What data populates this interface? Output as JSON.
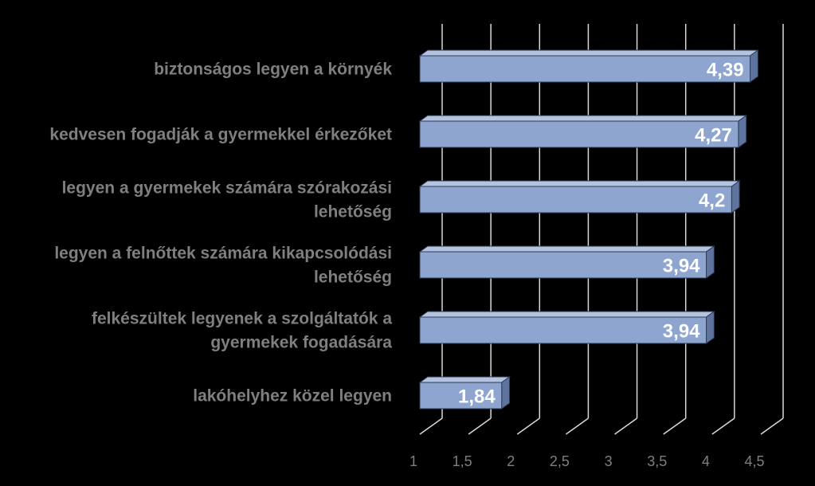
{
  "chart_data": {
    "type": "bar",
    "orientation": "horizontal",
    "categories": [
      "biztonságos legyen a környék",
      "kedvesen fogadják a gyermekkel érkezőket",
      "legyen a gyermekek számára szórakozási lehetőség",
      "legyen a felnőttek számára kikapcsolódási lehetőség",
      "felkészültek legyenek a szolgáltatók a gyermekek fogadására",
      "lakóhelyhez közel legyen"
    ],
    "category_lines": [
      [
        "biztonságos legyen a környék"
      ],
      [
        "kedvesen fogadják a gyermekkel érkezőket"
      ],
      [
        "legyen a gyermekek számára szórakozási",
        "lehetőség"
      ],
      [
        "legyen a felnőttek számára kikapcsolódási",
        "lehetőség"
      ],
      [
        "felkészültek legyenek a szolgáltatók a",
        "gyermekek fogadására"
      ],
      [
        "lakóhelyhez közel legyen"
      ]
    ],
    "values": [
      4.39,
      4.27,
      4.2,
      3.94,
      3.94,
      1.84
    ],
    "data_labels": [
      "4,39",
      "4,27",
      "4,2",
      "3,94",
      "3,94",
      "1,84"
    ],
    "xlim": [
      1,
      4.5
    ],
    "x_ticks": [
      1,
      1.5,
      2,
      2.5,
      3,
      3.5,
      4,
      4.5
    ],
    "x_tick_labels": [
      "1",
      "1,5",
      "2",
      "2,5",
      "3",
      "3,5",
      "4",
      "4,5"
    ],
    "grid": true,
    "style": "3d",
    "colors": {
      "background": "#000000",
      "bar_front": "#8EA5CF",
      "bar_top": "#B4C3E0",
      "bar_side": "#5E749E",
      "bar_outline": "#2E3B56",
      "grid": "#D9D9D9",
      "category_text": "#7F7F7F",
      "tick_text": "#7F7F7F",
      "value_text": "#FFFFFF"
    }
  }
}
